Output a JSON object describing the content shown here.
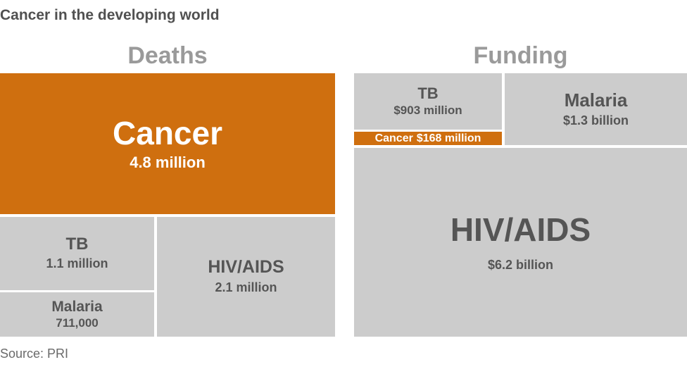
{
  "chart_data": {
    "type": "treemap",
    "title": "Cancer in the developing world",
    "source": "Source: PRI",
    "highlight_color": "#cf6f0f",
    "base_color": "#cccccc",
    "panels": [
      {
        "id": "deaths",
        "title": "Deaths",
        "items": [
          {
            "id": "cancer",
            "name": "Cancer",
            "value": 4800000,
            "label": "4.8 million",
            "highlight": true
          },
          {
            "id": "hiv",
            "name": "HIV/AIDS",
            "value": 2100000,
            "label": "2.1 million",
            "highlight": false
          },
          {
            "id": "tb",
            "name": "TB",
            "value": 1100000,
            "label": "1.1 million",
            "highlight": false
          },
          {
            "id": "malaria",
            "name": "Malaria",
            "value": 711000,
            "label": "711,000",
            "highlight": false
          }
        ]
      },
      {
        "id": "funding",
        "title": "Funding",
        "items": [
          {
            "id": "hiv",
            "name": "HIV/AIDS",
            "value": 6200000000,
            "label": "$6.2 billion",
            "highlight": false
          },
          {
            "id": "malaria",
            "name": "Malaria",
            "value": 1300000000,
            "label": "$1.3 billion",
            "highlight": false
          },
          {
            "id": "tb",
            "name": "TB",
            "value": 903000000,
            "label": "$903 million",
            "highlight": false
          },
          {
            "id": "cancer",
            "name": "Cancer",
            "value": 168000000,
            "label": "$168 million",
            "highlight": true
          }
        ]
      }
    ]
  }
}
